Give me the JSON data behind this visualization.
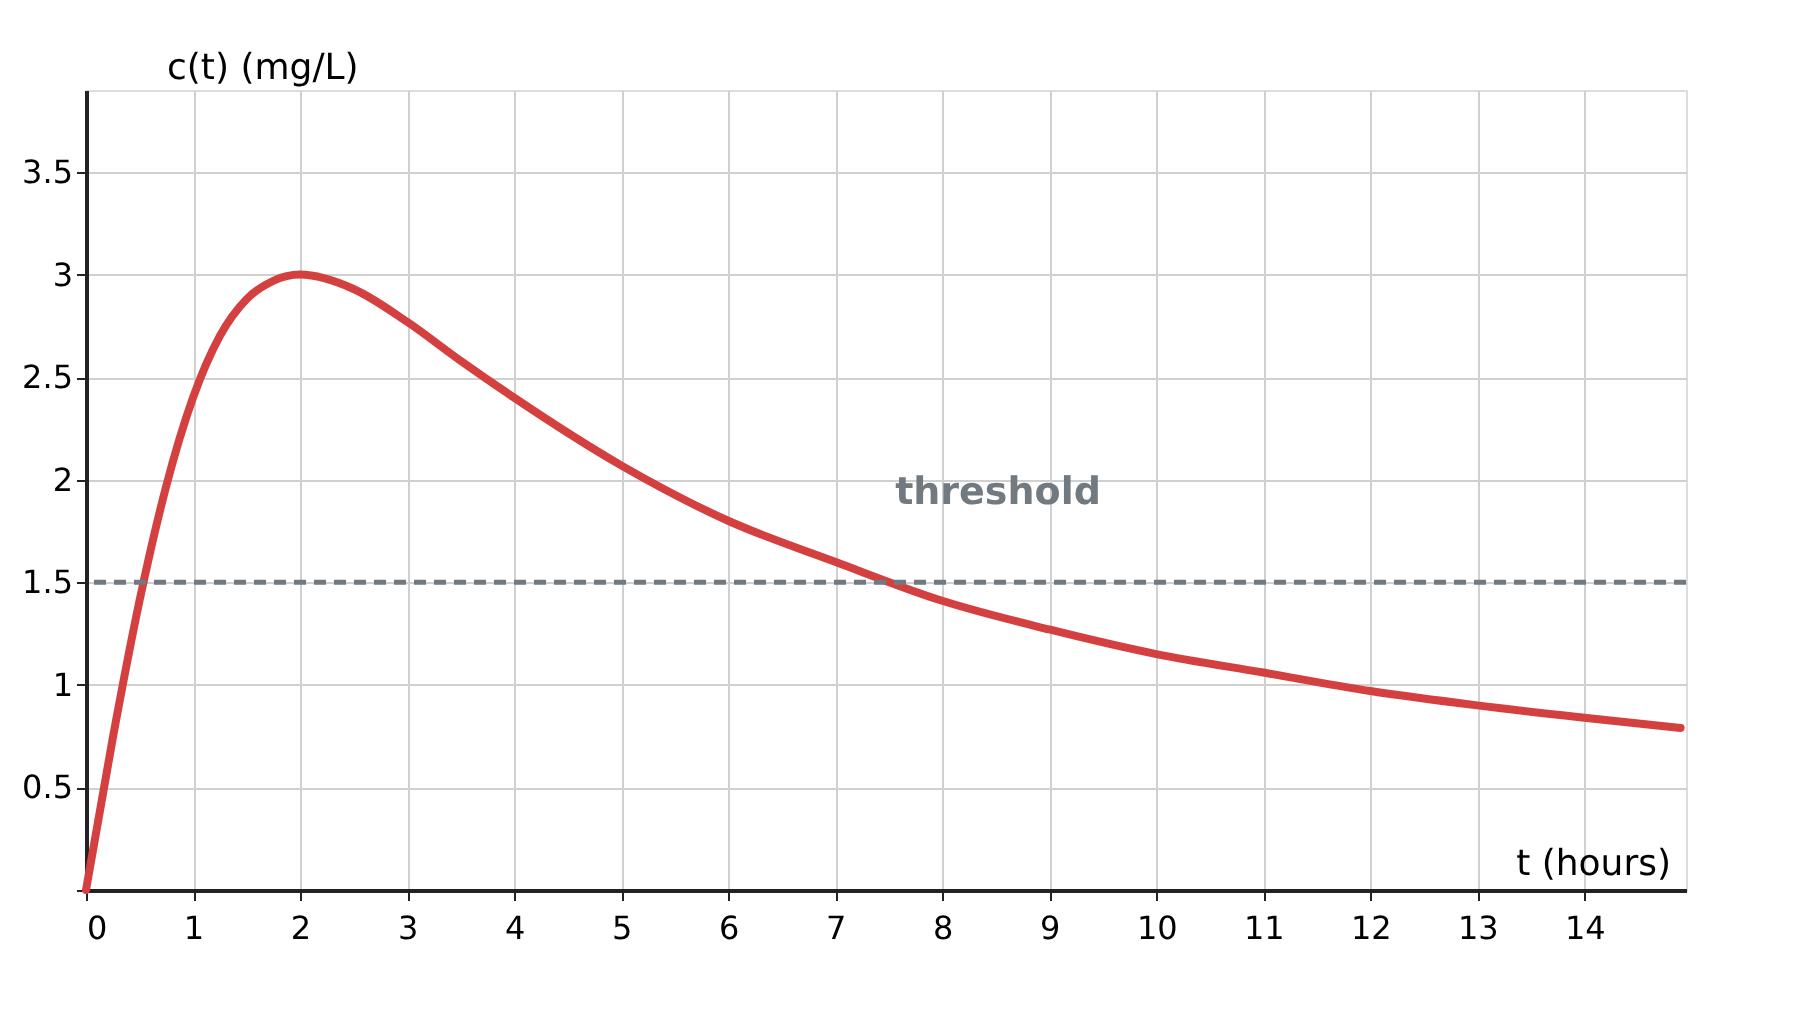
{
  "chart_data": {
    "type": "line",
    "xlabel": "t (hours)",
    "ylabel": "c(t) (mg/L)",
    "x": [
      0,
      0.25,
      0.5,
      0.75,
      1,
      1.25,
      1.5,
      1.75,
      2,
      2.5,
      3,
      3.5,
      4,
      5,
      6,
      7,
      8,
      9,
      10,
      11,
      12,
      13,
      14,
      14.9
    ],
    "series": [
      {
        "color": "#d44040",
        "values": [
          0,
          0.74,
          1.41,
          1.97,
          2.4,
          2.7,
          2.88,
          2.97,
          3.0,
          2.93,
          2.77,
          2.58,
          2.4,
          2.07,
          1.8,
          1.6,
          1.41,
          1.27,
          1.15,
          1.06,
          0.97,
          0.9,
          0.84,
          0.79
        ]
      }
    ],
    "xlim": [
      0,
      14.95
    ],
    "ylim": [
      0,
      3.9
    ],
    "xticks": [
      0,
      1,
      2,
      3,
      4,
      5,
      6,
      7,
      8,
      9,
      10,
      11,
      12,
      13,
      14
    ],
    "yticks": [
      {
        "value": 0,
        "label": null
      },
      0.5,
      1,
      1.5,
      2,
      2.5,
      3,
      3.5
    ],
    "ref_lines": [
      {
        "axis": "y",
        "value": 1.5,
        "label": "threshold",
        "color": "#707a80",
        "line_style": "dashed"
      }
    ],
    "grid": true,
    "marker": "none",
    "line_style": "solid"
  }
}
